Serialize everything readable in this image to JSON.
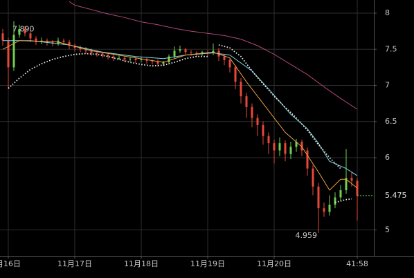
{
  "chart_data": {
    "type": "candlestick",
    "up_color": "#6fcf4f",
    "down_color": "#e8483b",
    "grid": true,
    "grid_color": "#2e2e2e",
    "xlim": [
      -0.5,
      67
    ],
    "ylim": [
      4.641,
      8.182
    ],
    "yticks": [
      8,
      7.5,
      7,
      6.5,
      6,
      5
    ],
    "xticks": [
      {
        "value": 1,
        "label": "月16日"
      },
      {
        "value": 13,
        "label": "11月17日"
      },
      {
        "value": 25,
        "label": "11月18日"
      },
      {
        "value": 37,
        "label": "11月19日"
      },
      {
        "value": 49,
        "label": "11月20日"
      },
      {
        "value": 64,
        "label": "41:58"
      }
    ],
    "open": [
      7.72,
      7.62,
      7.25,
      7.7,
      7.78,
      7.72,
      7.65,
      7.6,
      7.62,
      7.6,
      7.58,
      7.62,
      7.6,
      7.55,
      7.52,
      7.5,
      7.48,
      7.45,
      7.44,
      7.42,
      7.4,
      7.38,
      7.38,
      7.36,
      7.37,
      7.35,
      7.36,
      7.34,
      7.33,
      7.3,
      7.32,
      7.4,
      7.48,
      7.5,
      7.46,
      7.45,
      7.44,
      7.46,
      7.45,
      7.48,
      7.4,
      7.35,
      7.25,
      7.05,
      6.85,
      6.7,
      6.55,
      6.45,
      6.3,
      6.2,
      6.1,
      6.2,
      6.05,
      6.15,
      6.22,
      6.1,
      5.85,
      5.6,
      5.3,
      5.25,
      5.35,
      5.45,
      5.55,
      5.72,
      5.68
    ],
    "high": [
      7.78,
      7.66,
      7.89,
      7.84,
      7.82,
      7.76,
      7.68,
      7.66,
      7.65,
      7.63,
      7.66,
      7.65,
      7.63,
      7.58,
      7.55,
      7.53,
      7.51,
      7.48,
      7.46,
      7.44,
      7.42,
      7.41,
      7.4,
      7.4,
      7.39,
      7.39,
      7.38,
      7.36,
      7.36,
      7.34,
      7.43,
      7.54,
      7.55,
      7.52,
      7.49,
      7.47,
      7.48,
      7.49,
      7.58,
      7.52,
      7.43,
      7.38,
      7.28,
      7.1,
      6.9,
      6.75,
      6.6,
      6.5,
      6.35,
      6.25,
      6.28,
      6.24,
      6.22,
      6.26,
      6.25,
      6.14,
      5.9,
      5.65,
      5.38,
      5.48,
      5.52,
      5.62,
      6.12,
      5.8,
      5.72
    ],
    "low": [
      7.55,
      6.95,
      7.2,
      7.66,
      7.68,
      7.6,
      7.56,
      7.57,
      7.55,
      7.54,
      7.55,
      7.56,
      7.5,
      7.47,
      7.46,
      7.44,
      7.41,
      7.4,
      7.38,
      7.36,
      7.34,
      7.35,
      7.32,
      7.33,
      7.31,
      7.32,
      7.3,
      7.29,
      7.26,
      7.27,
      7.29,
      7.37,
      7.45,
      7.42,
      7.41,
      7.4,
      7.41,
      7.41,
      7.42,
      7.34,
      7.28,
      7.18,
      6.95,
      6.75,
      6.55,
      6.42,
      6.3,
      6.18,
      6.05,
      5.92,
      6.02,
      5.95,
      5.98,
      6.08,
      6.02,
      5.75,
      5.48,
      4.959,
      5.18,
      5.2,
      5.3,
      5.4,
      5.5,
      5.6,
      5.13
    ],
    "close": [
      7.62,
      7.25,
      7.7,
      7.78,
      7.72,
      7.65,
      7.6,
      7.62,
      7.6,
      7.58,
      7.62,
      7.6,
      7.55,
      7.52,
      7.5,
      7.48,
      7.45,
      7.44,
      7.42,
      7.4,
      7.38,
      7.38,
      7.36,
      7.37,
      7.35,
      7.36,
      7.34,
      7.33,
      7.3,
      7.32,
      7.4,
      7.48,
      7.5,
      7.46,
      7.45,
      7.44,
      7.46,
      7.45,
      7.48,
      7.4,
      7.35,
      7.25,
      7.05,
      6.85,
      6.7,
      6.55,
      6.45,
      6.3,
      6.2,
      6.1,
      6.2,
      6.05,
      6.15,
      6.22,
      6.1,
      5.85,
      5.6,
      5.3,
      5.25,
      5.35,
      5.45,
      5.55,
      5.72,
      5.68,
      5.475
    ],
    "max_label": "7.890",
    "min_label": "4.959",
    "series": [
      {
        "color": "#b0487a",
        "style": "line",
        "x": [
          12,
          13,
          16,
          19,
          22,
          25,
          28,
          31,
          34,
          37,
          40,
          43,
          46,
          49,
          52,
          55,
          58,
          61,
          64
        ],
        "values": [
          8.16,
          8.11,
          8.05,
          7.99,
          7.94,
          7.88,
          7.84,
          7.79,
          7.75,
          7.72,
          7.69,
          7.64,
          7.55,
          7.43,
          7.29,
          7.15,
          6.98,
          6.82,
          6.67
        ]
      },
      {
        "color": "#7fd8e8",
        "style": "line",
        "x": [
          0,
          5,
          12,
          18,
          24,
          29,
          33,
          38,
          41,
          45,
          48,
          52,
          55,
          57,
          59,
          62,
          64
        ],
        "values": [
          7.62,
          7.62,
          7.56,
          7.46,
          7.4,
          7.37,
          7.42,
          7.45,
          7.42,
          7.2,
          6.95,
          6.6,
          6.4,
          6.2,
          5.95,
          5.85,
          5.75
        ]
      },
      {
        "color": "#f0a040",
        "style": "line",
        "x": [
          0,
          3,
          10,
          16,
          24,
          29,
          33,
          38,
          41,
          44,
          47,
          51,
          54,
          57,
          59,
          61,
          62,
          64
        ],
        "values": [
          7.5,
          7.62,
          7.6,
          7.48,
          7.38,
          7.32,
          7.42,
          7.46,
          7.38,
          7.05,
          6.75,
          6.35,
          6.15,
          5.8,
          5.55,
          5.7,
          5.7,
          5.58
        ]
      },
      {
        "color": "#e6e6e6",
        "style": "dots",
        "x": [
          1,
          3,
          5,
          7,
          9,
          11,
          13,
          15,
          17,
          19,
          21,
          23,
          25,
          27,
          29,
          31,
          33,
          35,
          37,
          38,
          39,
          41,
          43,
          45,
          47,
          49,
          51,
          53,
          55,
          57,
          59,
          61,
          60.5,
          60,
          61,
          62,
          63
        ],
        "values": [
          6.96,
          7.1,
          7.22,
          7.3,
          7.36,
          7.4,
          7.43,
          7.44,
          7.43,
          7.4,
          7.36,
          7.32,
          7.29,
          7.27,
          7.28,
          7.32,
          7.37,
          7.4,
          7.4,
          null,
          7.56,
          7.52,
          7.4,
          7.2,
          7.02,
          6.85,
          6.7,
          6.55,
          6.38,
          6.18,
          6.0,
          5.85,
          null,
          5.38,
          5.4,
          5.42,
          5.43
        ]
      }
    ]
  }
}
